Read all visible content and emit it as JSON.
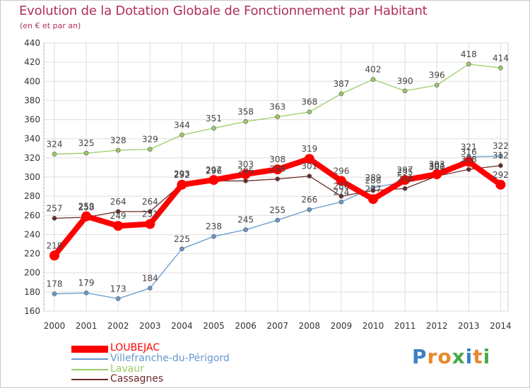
{
  "title": "Evolution de la Dotation Globale de Fonctionnement par Habitant",
  "subtitle": "(en € et par an)",
  "brand": "Proxiti",
  "colors": {
    "title": "#b0305a",
    "grid": "#dddddd",
    "LOUBEJAC": "#ff0000",
    "Villefranche-du-Périgord": "#6699cc",
    "Lavaur": "#99cc66",
    "Cassagnes": "#6b2a2a"
  },
  "chart_data": {
    "type": "line",
    "title": "Evolution de la Dotation Globale de Fonctionnement par Habitant",
    "subtitle": "(en € et par an)",
    "xlabel": "",
    "ylabel": "",
    "ylim": [
      160,
      440
    ],
    "yticks": [
      160,
      180,
      200,
      220,
      240,
      260,
      280,
      300,
      320,
      340,
      360,
      380,
      400,
      420,
      440
    ],
    "x": [
      "2000",
      "2001",
      "2002",
      "2003",
      "2004",
      "2005",
      "2006",
      "2007",
      "2008",
      "2009",
      "2010",
      "2011",
      "2012",
      "2013",
      "2014"
    ],
    "grid": true,
    "legend_position": "bottom-left",
    "series": [
      {
        "name": "LOUBEJAC",
        "values": [
          218,
          259,
          249,
          251,
          292,
          297,
          303,
          308,
          319,
          296,
          277,
          297,
          303,
          316,
          292
        ],
        "labels": [
          "218",
          "259",
          "249",
          "251",
          "292",
          "297",
          "303",
          "308",
          "319",
          "296",
          "277",
          "297",
          "303",
          "316",
          "292"
        ]
      },
      {
        "name": "Villefranche-du-Périgord",
        "values": [
          178,
          179,
          173,
          184,
          225,
          238,
          245,
          255,
          266,
          274,
          289,
          295,
          300,
          321,
          322
        ],
        "labels": [
          "178",
          "179",
          "173",
          "184",
          "225",
          "238",
          "245",
          "255",
          "266",
          "274",
          "289",
          "295",
          "300",
          "321",
          "322"
        ]
      },
      {
        "name": "Lavaur",
        "values": [
          324,
          325,
          328,
          329,
          344,
          351,
          358,
          363,
          368,
          387,
          402,
          390,
          396,
          418,
          414
        ],
        "labels": [
          "324",
          "325",
          "328",
          "329",
          "344",
          "351",
          "358",
          "363",
          "368",
          "387",
          "402",
          "390",
          "396",
          "418",
          "414"
        ]
      },
      {
        "name": "Cassagnes",
        "values": [
          257,
          258,
          264,
          264,
          293,
          296,
          296,
          298,
          301,
          280,
          286,
          288,
          301,
          308,
          312
        ],
        "labels": [
          "257",
          "258",
          "264",
          "264",
          "293",
          "296",
          "296",
          "298",
          "301",
          "280",
          "286",
          "288",
          "301",
          "308",
          "312"
        ]
      }
    ]
  },
  "legend": [
    {
      "name": "LOUBEJAC"
    },
    {
      "name": "Villefranche-du-Périgord"
    },
    {
      "name": "Lavaur"
    },
    {
      "name": "Cassagnes"
    }
  ]
}
